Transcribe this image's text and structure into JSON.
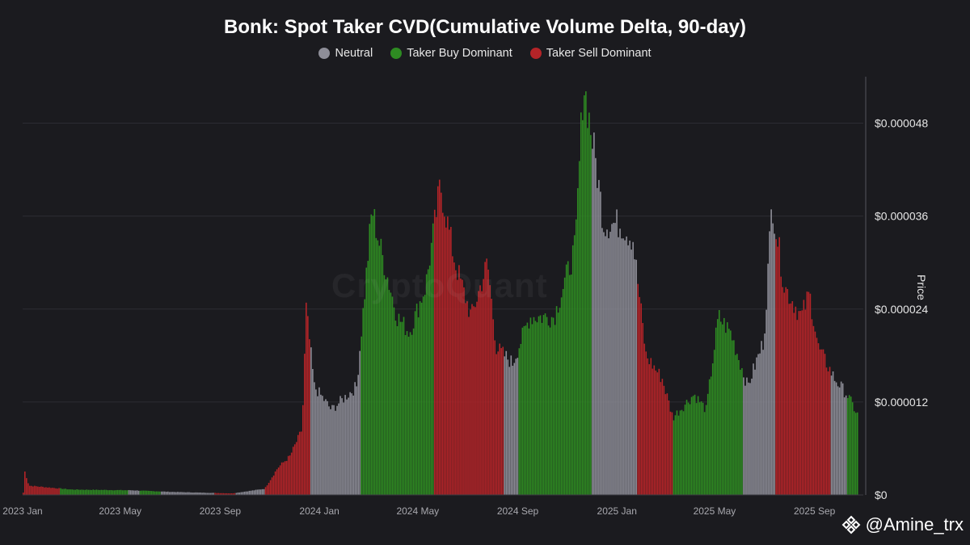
{
  "chart_data": {
    "type": "bar",
    "title": "Bonk: Spot Taker CVD(Cumulative Volume Delta, 90-day)",
    "legend": [
      {
        "name": "Neutral",
        "color": "#8e8e98"
      },
      {
        "name": "Taker Buy Dominant",
        "color": "#2e8b22"
      },
      {
        "name": "Taker Sell Dominant",
        "color": "#b52428"
      }
    ],
    "legend_placement": "top-center",
    "y_axis": {
      "label": "Price",
      "position": "right",
      "ticks": [
        "$0",
        "$0.000012",
        "$0.000024",
        "$0.000036",
        "$0.000048"
      ],
      "range": [
        0,
        5.4e-05
      ],
      "grid": true
    },
    "x_axis": {
      "ticks": [
        "2023 Jan",
        "2023 May",
        "2023 Sep",
        "2024 Jan",
        "2024 May",
        "2024 Sep",
        "2025 Jan",
        "2025 May",
        "2025 Sep"
      ],
      "range": [
        "2023-01-01",
        "2025-10-31"
      ]
    },
    "watermark": "CryptoQuant",
    "series_by_regime": [
      {
        "start": "2023-01-01",
        "end": "2023-10-25",
        "regime": "mixed_low",
        "price_range": [
          2e-07,
          3e-06
        ]
      },
      {
        "start": "2023-10-25",
        "end": "2023-12-20",
        "regime": "Taker Sell Dominant"
      },
      {
        "start": "2023-12-20",
        "end": "2024-02-20",
        "regime": "Neutral"
      },
      {
        "start": "2024-02-20",
        "end": "2024-05-20",
        "regime": "Taker Buy Dominant"
      },
      {
        "start": "2024-05-20",
        "end": "2024-08-15",
        "regime": "Taker Sell Dominant"
      },
      {
        "start": "2024-08-15",
        "end": "2024-09-01",
        "regime": "Neutral"
      },
      {
        "start": "2024-09-01",
        "end": "2024-12-01",
        "regime": "Taker Buy Dominant"
      },
      {
        "start": "2024-12-01",
        "end": "2025-01-25",
        "regime": "Neutral"
      },
      {
        "start": "2025-01-25",
        "end": "2025-03-10",
        "regime": "Taker Sell Dominant"
      },
      {
        "start": "2025-03-10",
        "end": "2025-06-05",
        "regime": "Taker Buy Dominant"
      },
      {
        "start": "2025-06-05",
        "end": "2025-07-15",
        "regime": "Neutral"
      },
      {
        "start": "2025-07-15",
        "end": "2025-09-20",
        "regime": "Taker Sell Dominant"
      },
      {
        "start": "2025-09-20",
        "end": "2025-10-10",
        "regime": "Neutral"
      },
      {
        "start": "2025-10-10",
        "end": "2025-10-25",
        "regime": "Taker Buy Dominant"
      }
    ],
    "price_keypoints": [
      [
        "2023-01-01",
        3e-07
      ],
      [
        "2023-01-03",
        3e-06
      ],
      [
        "2023-01-08",
        1.2e-06
      ],
      [
        "2023-03-01",
        7e-07
      ],
      [
        "2023-05-15",
        6e-07
      ],
      [
        "2023-07-01",
        4e-07
      ],
      [
        "2023-09-15",
        2e-07
      ],
      [
        "2023-10-25",
        8e-07
      ],
      [
        "2023-11-10",
        3.5e-06
      ],
      [
        "2023-11-25",
        5e-06
      ],
      [
        "2023-12-10",
        8.5e-06
      ],
      [
        "2023-12-15",
        2.4e-05
      ],
      [
        "2023-12-25",
        1.4e-05
      ],
      [
        "2024-01-15",
        1.1e-05
      ],
      [
        "2024-02-15",
        1.4e-05
      ],
      [
        "2024-03-05",
        3.7e-05
      ],
      [
        "2024-03-15",
        3.2e-05
      ],
      [
        "2024-04-05",
        2.3e-05
      ],
      [
        "2024-04-20",
        2.1e-05
      ],
      [
        "2024-05-10",
        2.7e-05
      ],
      [
        "2024-05-28",
        4e-05
      ],
      [
        "2024-06-15",
        3e-05
      ],
      [
        "2024-07-05",
        2.3e-05
      ],
      [
        "2024-07-25",
        3e-05
      ],
      [
        "2024-08-05",
        1.9e-05
      ],
      [
        "2024-08-25",
        1.7e-05
      ],
      [
        "2024-09-15",
        2.3e-05
      ],
      [
        "2024-10-15",
        2.3e-05
      ],
      [
        "2024-11-10",
        3.2e-05
      ],
      [
        "2024-11-20",
        5.35e-05
      ],
      [
        "2024-12-05",
        4.3e-05
      ],
      [
        "2024-12-15",
        3.5e-05
      ],
      [
        "2025-01-05",
        3.5e-05
      ],
      [
        "2025-01-20",
        3.3e-05
      ],
      [
        "2025-02-05",
        1.8e-05
      ],
      [
        "2025-02-25",
        1.5e-05
      ],
      [
        "2025-03-10",
        1e-05
      ],
      [
        "2025-04-05",
        1.3e-05
      ],
      [
        "2025-04-20",
        1.1e-05
      ],
      [
        "2025-05-05",
        2.3e-05
      ],
      [
        "2025-05-20",
        2.1e-05
      ],
      [
        "2025-06-10",
        1.4e-05
      ],
      [
        "2025-06-30",
        2e-05
      ],
      [
        "2025-07-10",
        3.8e-05
      ],
      [
        "2025-07-25",
        2.7e-05
      ],
      [
        "2025-08-15",
        2.3e-05
      ],
      [
        "2025-08-25",
        2.6e-05
      ],
      [
        "2025-09-05",
        1.9e-05
      ],
      [
        "2025-09-25",
        1.5e-05
      ],
      [
        "2025-10-10",
        1.3e-05
      ],
      [
        "2025-10-25",
        1e-05
      ]
    ],
    "early_regime_pattern": [
      {
        "start": "2023-01-01",
        "end": "2023-02-15",
        "regime": "Taker Sell Dominant"
      },
      {
        "start": "2023-02-15",
        "end": "2023-05-10",
        "regime": "Taker Buy Dominant"
      },
      {
        "start": "2023-05-10",
        "end": "2023-05-25",
        "regime": "Neutral"
      },
      {
        "start": "2023-05-25",
        "end": "2023-06-20",
        "regime": "Taker Buy Dominant"
      },
      {
        "start": "2023-06-20",
        "end": "2023-08-25",
        "regime": "Neutral"
      },
      {
        "start": "2023-08-25",
        "end": "2023-09-20",
        "regime": "Taker Sell Dominant"
      },
      {
        "start": "2023-09-20",
        "end": "2023-10-25",
        "regime": "Neutral"
      }
    ]
  },
  "credit": {
    "handle": "@Amine_trx"
  }
}
